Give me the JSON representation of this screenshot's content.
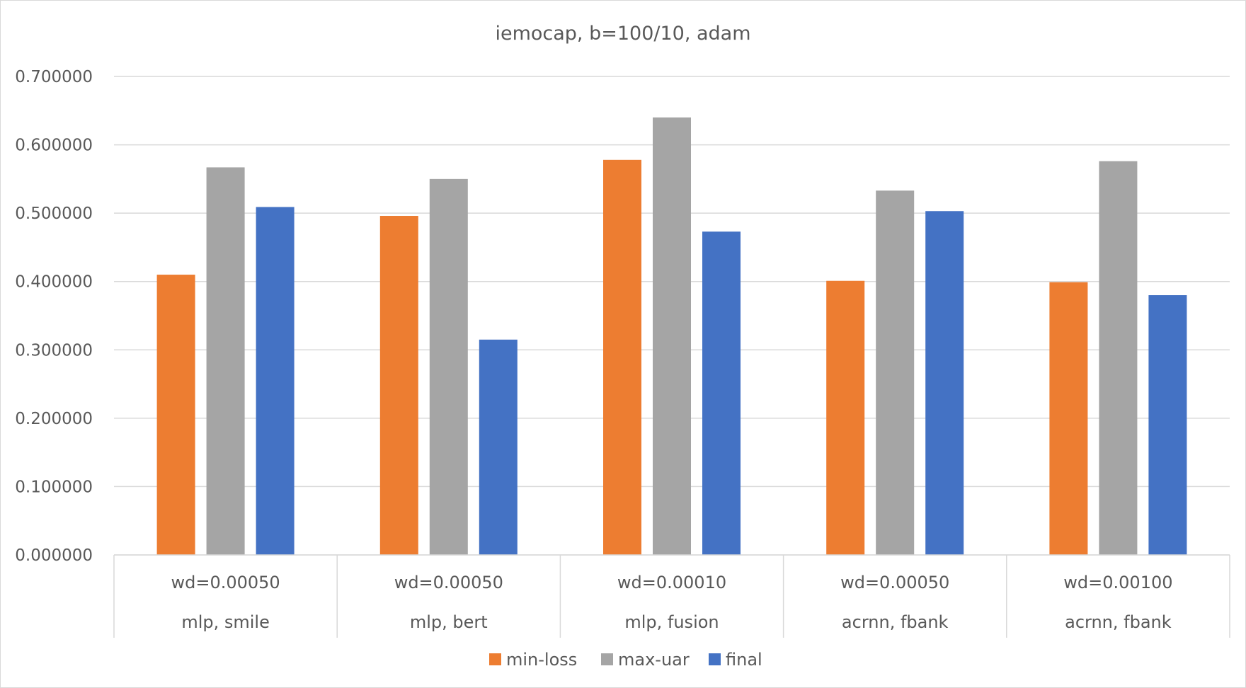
{
  "chart_data": {
    "type": "bar",
    "title": "iemocap, b=100/10, adam",
    "categories": [
      [
        "wd=0.00050",
        "mlp, smile"
      ],
      [
        "wd=0.00050",
        "mlp, bert"
      ],
      [
        "wd=0.00010",
        "mlp, fusion"
      ],
      [
        "wd=0.00050",
        "acrnn, fbank"
      ],
      [
        "wd=0.00100",
        "acrnn, fbank"
      ]
    ],
    "series": [
      {
        "name": "min-loss",
        "color": "#ed7d31",
        "values": [
          0.41,
          0.496,
          0.578,
          0.401,
          0.399
        ]
      },
      {
        "name": "max-uar",
        "color": "#a5a5a5",
        "values": [
          0.567,
          0.55,
          0.64,
          0.533,
          0.576
        ]
      },
      {
        "name": "final",
        "color": "#4472c4",
        "values": [
          0.509,
          0.315,
          0.473,
          0.503,
          0.38
        ]
      }
    ],
    "ylim": [
      0,
      0.7
    ],
    "yticks": [
      "0.000000",
      "0.100000",
      "0.200000",
      "0.300000",
      "0.400000",
      "0.500000",
      "0.600000",
      "0.700000"
    ],
    "ytick_values": [
      0,
      0.1,
      0.2,
      0.3,
      0.4,
      0.5,
      0.6,
      0.7
    ],
    "grid": true,
    "legend_position": "bottom"
  }
}
